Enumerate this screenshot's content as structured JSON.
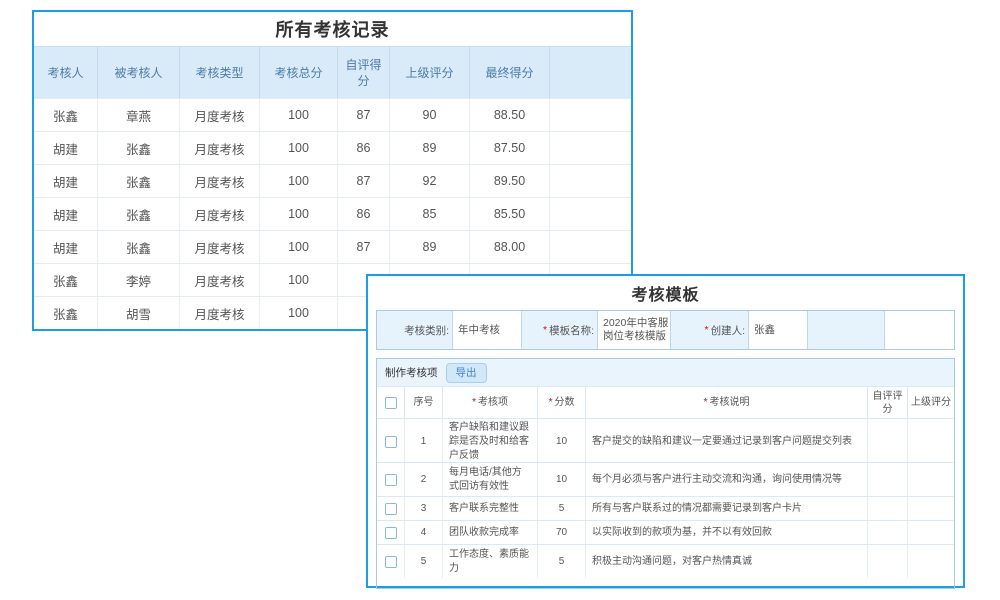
{
  "colors": {
    "panel_border": "#1a9fe0",
    "table_header_bg": "#d9eaf8",
    "table_header_text": "#4d7ba6",
    "required_mark_color": "#e60000",
    "export_button_bg": "#d2e7f8",
    "export_button_text": "#3f87c9",
    "section_bar_bg": "#e9f4fd"
  },
  "records_panel": {
    "title": "所有考核记录",
    "columns": [
      "考核人",
      "被考核人",
      "考核类型",
      "考核总分",
      "自评得分",
      "上级评分",
      "最终得分"
    ],
    "rows": [
      {
        "assessor": "张鑫",
        "assessee": "章燕",
        "type": "月度考核",
        "total": "100",
        "self": "87",
        "superior": "90",
        "final": "88.50"
      },
      {
        "assessor": "胡建",
        "assessee": "张鑫",
        "type": "月度考核",
        "total": "100",
        "self": "86",
        "superior": "89",
        "final": "87.50"
      },
      {
        "assessor": "胡建",
        "assessee": "张鑫",
        "type": "月度考核",
        "total": "100",
        "self": "87",
        "superior": "92",
        "final": "89.50"
      },
      {
        "assessor": "胡建",
        "assessee": "张鑫",
        "type": "月度考核",
        "total": "100",
        "self": "86",
        "superior": "85",
        "final": "85.50"
      },
      {
        "assessor": "胡建",
        "assessee": "张鑫",
        "type": "月度考核",
        "total": "100",
        "self": "87",
        "superior": "89",
        "final": "88.00"
      },
      {
        "assessor": "张鑫",
        "assessee": "李婷",
        "type": "月度考核",
        "total": "100",
        "self": "",
        "superior": "",
        "final": ""
      },
      {
        "assessor": "张鑫",
        "assessee": "胡雪",
        "type": "月度考核",
        "total": "100",
        "self": "",
        "superior": "",
        "final": ""
      }
    ]
  },
  "template_panel": {
    "title": "考核模板",
    "required_mark": "*",
    "form": {
      "category_label": "考核类别:",
      "category_value": "年中考核",
      "name_label": "模板名称:",
      "name_value": "2020年中客服岗位考核模版",
      "creator_label": "创建人:",
      "creator_value": "张鑫"
    },
    "items_section": {
      "section_label": "制作考核项",
      "export_button": "导出",
      "columns": {
        "seq": "序号",
        "item": "考核项",
        "score": "分数",
        "desc": "考核说明",
        "self": "自评评分",
        "superior": "上级评分"
      },
      "items": [
        {
          "seq": "1",
          "name": "客户缺陷和建议跟踪是否及时和给客户反馈",
          "score": "10",
          "desc": "客户提交的缺陷和建议一定要通过记录到客户问题提交列表"
        },
        {
          "seq": "2",
          "name": "每月电话/其他方式回访有效性",
          "score": "10",
          "desc": "每个月必须与客户进行主动交流和沟通，询问使用情况等"
        },
        {
          "seq": "3",
          "name": "客户联系完整性",
          "score": "5",
          "desc": "所有与客户联系过的情况都需要记录到客户卡片"
        },
        {
          "seq": "4",
          "name": "团队收款完成率",
          "score": "70",
          "desc": "以实际收到的款项为基，并不以有效回款"
        },
        {
          "seq": "5",
          "name": "工作态度、素质能力",
          "score": "5",
          "desc": "积极主动沟通问题，对客户热情真诚"
        }
      ]
    }
  }
}
